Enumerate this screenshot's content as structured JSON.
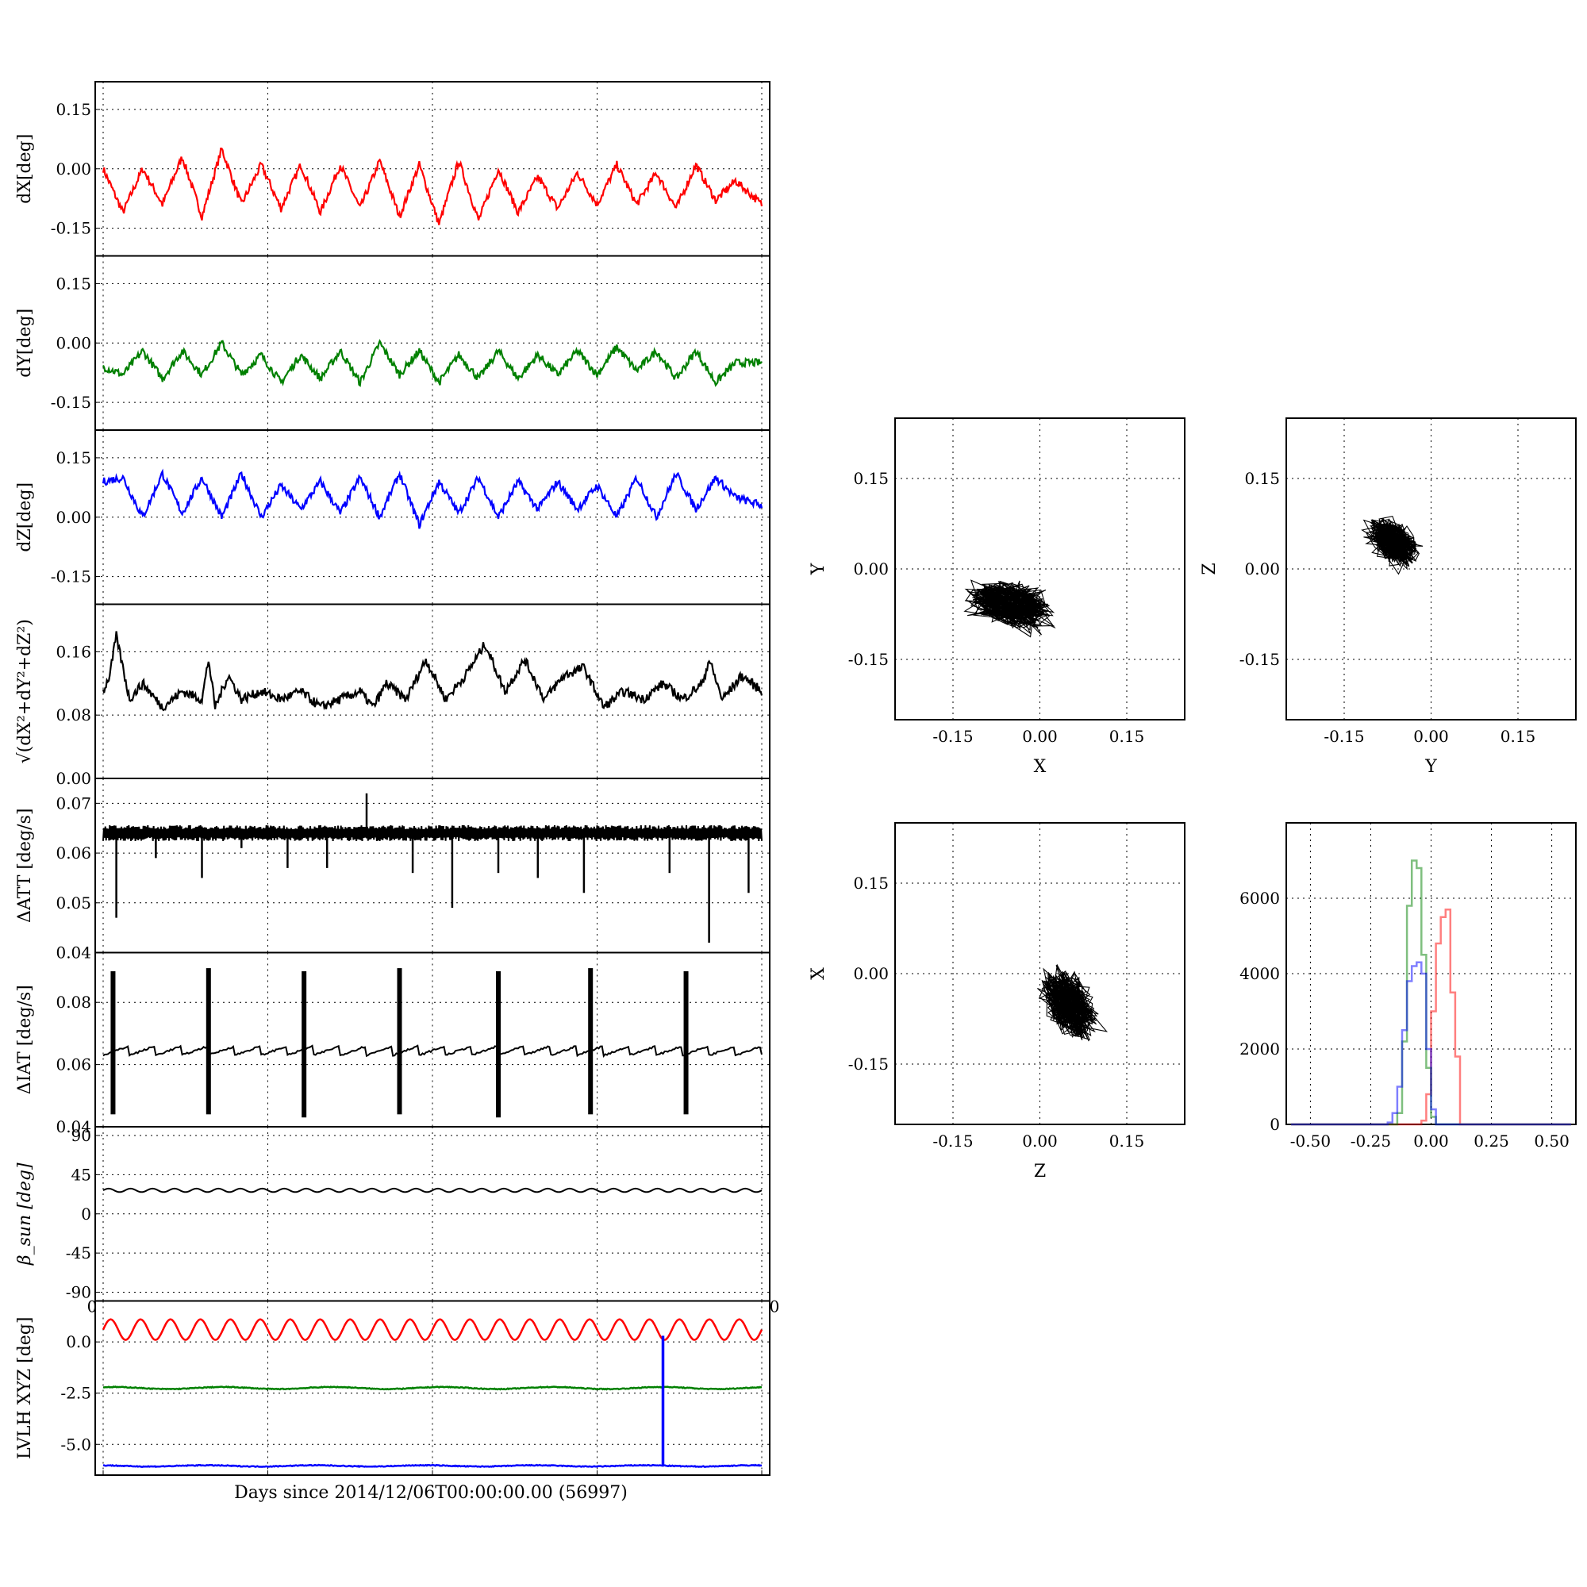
{
  "colors": {
    "x": "#ff0000",
    "y": "#008000",
    "z": "#0000ff",
    "mag": "#000000"
  },
  "footer_label": "Days since 2014/12/06T00:00:00.00 (56997)",
  "chart_data": [
    {
      "type": "line",
      "panel": "dX",
      "ylabel": "dX[deg]",
      "ylim": [
        -0.22,
        0.22
      ],
      "yticks": [
        "0.15",
        "0.00",
        "-0.15"
      ],
      "ytick_values": [
        0.15,
        0,
        -0.15
      ],
      "grid": true,
      "color": "#ff0000",
      "series": [
        {
          "x": [
            0,
            0.03,
            0.06,
            0.09,
            0.12,
            0.15,
            0.18,
            0.21,
            0.24,
            0.27,
            0.3,
            0.33,
            0.36,
            0.39,
            0.42,
            0.45,
            0.48,
            0.51,
            0.54,
            0.57,
            0.6,
            0.63,
            0.66,
            0.69,
            0.72,
            0.75,
            0.78,
            0.81,
            0.84,
            0.87,
            0.9,
            0.93,
            0.96,
            1.0
          ],
          "y": [
            0.0,
            -0.11,
            0.0,
            -0.09,
            0.03,
            -0.12,
            0.05,
            -0.09,
            0.01,
            -0.1,
            0.01,
            -0.11,
            0.01,
            -0.1,
            0.02,
            -0.12,
            0.01,
            -0.14,
            0.02,
            -0.13,
            0.0,
            -0.11,
            -0.02,
            -0.1,
            -0.01,
            -0.09,
            0.01,
            -0.09,
            -0.01,
            -0.1,
            0.01,
            -0.08,
            -0.03,
            -0.09
          ]
        }
      ]
    },
    {
      "type": "line",
      "panel": "dY",
      "ylabel": "dY[deg]",
      "ylim": [
        -0.22,
        0.22
      ],
      "yticks": [
        "0.15",
        "0.00",
        "-0.15"
      ],
      "ytick_values": [
        0.15,
        0,
        -0.15
      ],
      "grid": true,
      "color": "#008000",
      "series": [
        {
          "x": [
            0,
            0.03,
            0.06,
            0.09,
            0.12,
            0.15,
            0.18,
            0.21,
            0.24,
            0.27,
            0.3,
            0.33,
            0.36,
            0.39,
            0.42,
            0.45,
            0.48,
            0.51,
            0.54,
            0.57,
            0.6,
            0.63,
            0.66,
            0.69,
            0.72,
            0.75,
            0.78,
            0.81,
            0.84,
            0.87,
            0.9,
            0.93,
            0.96,
            1.0
          ],
          "y": [
            -0.06,
            -0.08,
            -0.02,
            -0.09,
            -0.02,
            -0.08,
            0.0,
            -0.08,
            -0.03,
            -0.1,
            -0.03,
            -0.09,
            -0.02,
            -0.1,
            0.0,
            -0.08,
            -0.02,
            -0.1,
            -0.03,
            -0.09,
            -0.02,
            -0.09,
            -0.03,
            -0.08,
            -0.02,
            -0.08,
            -0.01,
            -0.07,
            -0.02,
            -0.09,
            -0.02,
            -0.1,
            -0.05,
            -0.05
          ]
        }
      ]
    },
    {
      "type": "line",
      "panel": "dZ",
      "ylabel": "dZ[deg]",
      "ylim": [
        -0.22,
        0.22
      ],
      "yticks": [
        "0.15",
        "0.00",
        "-0.15"
      ],
      "ytick_values": [
        0.15,
        0,
        -0.15
      ],
      "grid": true,
      "color": "#0000ff",
      "series": [
        {
          "x": [
            0,
            0.03,
            0.06,
            0.09,
            0.12,
            0.15,
            0.18,
            0.21,
            0.24,
            0.27,
            0.3,
            0.33,
            0.36,
            0.39,
            0.42,
            0.45,
            0.48,
            0.51,
            0.54,
            0.57,
            0.6,
            0.63,
            0.66,
            0.69,
            0.72,
            0.75,
            0.78,
            0.81,
            0.84,
            0.87,
            0.9,
            0.93,
            0.96,
            1.0
          ],
          "y": [
            0.09,
            0.1,
            0.0,
            0.11,
            0.01,
            0.1,
            0.0,
            0.11,
            0.0,
            0.08,
            0.02,
            0.09,
            0.01,
            0.1,
            0.0,
            0.11,
            -0.02,
            0.09,
            0.01,
            0.1,
            0.0,
            0.09,
            0.02,
            0.09,
            0.02,
            0.08,
            0.0,
            0.1,
            0.0,
            0.11,
            0.02,
            0.1,
            0.05,
            0.03
          ]
        }
      ]
    },
    {
      "type": "line",
      "panel": "magnitude",
      "ylabel": "√(dX²+dY²+dZ²)",
      "ylim": [
        0.0,
        0.22
      ],
      "yticks": [
        "0.16",
        "0.08",
        "0.00"
      ],
      "ytick_values": [
        0.16,
        0.08,
        0.0
      ],
      "grid": true,
      "color": "#000000",
      "series": [
        {
          "x": [
            0,
            0.01,
            0.02,
            0.04,
            0.06,
            0.09,
            0.12,
            0.15,
            0.16,
            0.17,
            0.19,
            0.21,
            0.24,
            0.27,
            0.3,
            0.33,
            0.36,
            0.39,
            0.41,
            0.43,
            0.46,
            0.49,
            0.52,
            0.55,
            0.58,
            0.61,
            0.64,
            0.67,
            0.7,
            0.73,
            0.76,
            0.79,
            0.82,
            0.85,
            0.88,
            0.91,
            0.92,
            0.94,
            0.97,
            1.0
          ],
          "y": [
            0.11,
            0.13,
            0.18,
            0.1,
            0.12,
            0.09,
            0.11,
            0.1,
            0.15,
            0.09,
            0.13,
            0.1,
            0.11,
            0.1,
            0.11,
            0.09,
            0.1,
            0.11,
            0.09,
            0.12,
            0.1,
            0.15,
            0.1,
            0.13,
            0.17,
            0.11,
            0.15,
            0.1,
            0.13,
            0.14,
            0.09,
            0.11,
            0.1,
            0.12,
            0.1,
            0.12,
            0.15,
            0.1,
            0.13,
            0.11
          ]
        }
      ]
    },
    {
      "type": "line",
      "panel": "dATT",
      "ylabel": "ΔATT [deg/s]",
      "ylim": [
        0.04,
        0.075
      ],
      "yticks": [
        "0.07",
        "0.06",
        "0.05",
        "0.04"
      ],
      "ytick_values": [
        0.07,
        0.06,
        0.05,
        0.04
      ],
      "grid": true,
      "color": "#000000",
      "baseline": 0.064,
      "spikes": [
        {
          "x": 0.02,
          "y": 0.047
        },
        {
          "x": 0.08,
          "y": 0.059
        },
        {
          "x": 0.15,
          "y": 0.055
        },
        {
          "x": 0.21,
          "y": 0.061
        },
        {
          "x": 0.28,
          "y": 0.057
        },
        {
          "x": 0.34,
          "y": 0.057
        },
        {
          "x": 0.4,
          "y": 0.072
        },
        {
          "x": 0.47,
          "y": 0.056
        },
        {
          "x": 0.53,
          "y": 0.049
        },
        {
          "x": 0.6,
          "y": 0.056
        },
        {
          "x": 0.66,
          "y": 0.055
        },
        {
          "x": 0.73,
          "y": 0.052
        },
        {
          "x": 0.86,
          "y": 0.056
        },
        {
          "x": 0.92,
          "y": 0.042
        },
        {
          "x": 0.98,
          "y": 0.052
        }
      ]
    },
    {
      "type": "line",
      "panel": "dIAT",
      "ylabel": "ΔIAT [deg/s]",
      "ylim": [
        0.04,
        0.096
      ],
      "yticks": [
        "0.08",
        "0.06",
        "0.04"
      ],
      "ytick_values": [
        0.08,
        0.06,
        0.04
      ],
      "grid": true,
      "color": "#000000",
      "baseline": 0.0645,
      "spikes": [
        {
          "x": 0.015,
          "top": 0.09,
          "bottom": 0.044
        },
        {
          "x": 0.16,
          "top": 0.091,
          "bottom": 0.044
        },
        {
          "x": 0.305,
          "top": 0.09,
          "bottom": 0.043
        },
        {
          "x": 0.45,
          "top": 0.091,
          "bottom": 0.044
        },
        {
          "x": 0.6,
          "top": 0.09,
          "bottom": 0.043
        },
        {
          "x": 0.74,
          "top": 0.091,
          "bottom": 0.044
        },
        {
          "x": 0.885,
          "top": 0.09,
          "bottom": 0.044
        }
      ]
    },
    {
      "type": "line",
      "panel": "beta_sun",
      "ylabel": "β_sun [deg]",
      "ylim": [
        -100,
        100
      ],
      "yticks": [
        "90",
        "45",
        "0",
        "-45",
        "-90"
      ],
      "ytick_values": [
        90,
        45,
        0,
        -45,
        -90
      ],
      "grid": true,
      "color": "#000000",
      "series": [
        {
          "name": "",
          "mean": 27,
          "amplitude": 2,
          "cycles": 30
        }
      ],
      "corner_labels": [
        "0",
        "0"
      ]
    },
    {
      "type": "line",
      "panel": "LVLH",
      "ylabel": "LVLH XYZ [deg]",
      "ylim": [
        -6.5,
        2.0
      ],
      "yticks": [
        "0.0",
        "-2.5",
        "-5.0"
      ],
      "ytick_values": [
        0.0,
        -2.5,
        -5.0
      ],
      "grid": true,
      "xlabel": "Days since 2014/12/06T00:00:00.00 (56997)",
      "series": [
        {
          "color": "#ff0000",
          "mean": 0.6,
          "amplitude": 0.5,
          "cycles": 22
        },
        {
          "color": "#008000",
          "mean": -2.25,
          "amplitude": 0.05,
          "cycles": 6
        },
        {
          "color": "#0000ff",
          "mean": -6.05,
          "amplitude": 0.03,
          "cycles": 6
        }
      ],
      "spike": {
        "x": 0.85,
        "top": 0.3,
        "bottom": -6.05,
        "color": "#0000ff"
      }
    },
    {
      "type": "scatter",
      "panel": "XY",
      "xlabel": "X",
      "ylabel": "Y",
      "xlim": [
        -0.25,
        0.25
      ],
      "ylim": [
        -0.25,
        0.25
      ],
      "xticks": [
        "-0.15",
        "0.00",
        "0.15"
      ],
      "yticks": [
        "0.15",
        "0.00",
        "-0.15"
      ],
      "tick_values": [
        -0.15,
        0,
        0.15
      ],
      "grid": true,
      "color": "#000000",
      "cloud": {
        "cx": -0.05,
        "cy": -0.06,
        "sx": 0.06,
        "sy": 0.03,
        "tilt": -0.2
      }
    },
    {
      "type": "scatter",
      "panel": "YZ",
      "xlabel": "Y",
      "ylabel": "Z",
      "xlim": [
        -0.25,
        0.25
      ],
      "ylim": [
        -0.25,
        0.25
      ],
      "xticks": [
        "-0.15",
        "0.00",
        "0.15"
      ],
      "yticks": [
        "0.15",
        "0.00",
        "-0.15"
      ],
      "tick_values": [
        -0.15,
        0,
        0.15
      ],
      "grid": true,
      "color": "#000000",
      "cloud": {
        "cx": -0.065,
        "cy": 0.045,
        "sx": 0.025,
        "sy": 0.04,
        "tilt": 0.9
      }
    },
    {
      "type": "scatter",
      "panel": "ZX",
      "xlabel": "Z",
      "ylabel": "X",
      "xlim": [
        -0.25,
        0.25
      ],
      "ylim": [
        -0.25,
        0.25
      ],
      "xticks": [
        "-0.15",
        "0.00",
        "0.15"
      ],
      "yticks": [
        "0.15",
        "0.00",
        "-0.15"
      ],
      "tick_values": [
        -0.15,
        0,
        0.15
      ],
      "grid": true,
      "color": "#000000",
      "cloud": {
        "cx": 0.05,
        "cy": -0.05,
        "sx": 0.03,
        "sy": 0.05,
        "tilt": 0.6
      }
    },
    {
      "type": "bar",
      "panel": "histogram",
      "xlim": [
        -0.6,
        0.6
      ],
      "ylim": [
        0,
        8000
      ],
      "xticks": [
        "-0.50",
        "-0.25",
        "0.00",
        "0.25",
        "0.50"
      ],
      "xtick_values": [
        -0.5,
        -0.25,
        0,
        0.25,
        0.5
      ],
      "yticks": [
        "6000",
        "4000",
        "2000",
        "0"
      ],
      "ytick_values": [
        6000,
        4000,
        2000,
        0
      ],
      "grid": true,
      "series": [
        {
          "color": "#ff0000",
          "bins": [
            -0.06,
            -0.04,
            -0.02,
            0.0,
            0.02,
            0.04,
            0.06,
            0.08,
            0.1,
            0.12
          ],
          "counts": [
            0,
            100,
            800,
            3000,
            4800,
            5500,
            5700,
            3500,
            1800,
            0
          ]
        },
        {
          "color": "#008000",
          "bins": [
            -0.16,
            -0.14,
            -0.12,
            -0.1,
            -0.08,
            -0.06,
            -0.04,
            -0.02,
            0.0,
            0.02
          ],
          "counts": [
            0,
            300,
            2200,
            5800,
            7000,
            6800,
            4500,
            1500,
            200,
            0
          ]
        },
        {
          "color": "#0000ff",
          "bins": [
            -0.2,
            -0.18,
            -0.16,
            -0.14,
            -0.12,
            -0.1,
            -0.08,
            -0.06,
            -0.04,
            -0.02,
            0.0,
            0.02
          ],
          "counts": [
            0,
            50,
            300,
            1000,
            2500,
            3800,
            4200,
            4300,
            4000,
            2000,
            400,
            0
          ]
        }
      ]
    }
  ]
}
